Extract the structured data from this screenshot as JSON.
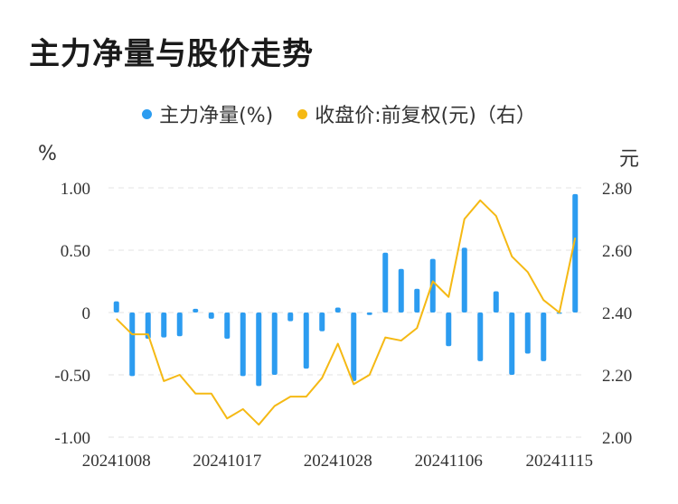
{
  "chart_data": {
    "type": "bar",
    "title": "主力净量与股价走势",
    "legend": [
      {
        "label": "主力净量(%)",
        "color": "#2c9cf0"
      },
      {
        "label": "收盘价:前复权(元)（右）",
        "color": "#f5b914"
      }
    ],
    "left_unit": "%",
    "right_unit": "元",
    "left_ylim": [
      -1.0,
      1.0
    ],
    "right_ylim": [
      2.0,
      2.8
    ],
    "left_ticks": [
      "1.00",
      "0.50",
      "0",
      "-0.50",
      "-1.00"
    ],
    "right_ticks": [
      "2.80",
      "2.60",
      "2.40",
      "2.20",
      "2.00"
    ],
    "x_tick_labels": [
      "20241008",
      "20241017",
      "20241028",
      "20241106",
      "20241115"
    ],
    "x_tick_indices": [
      0,
      7,
      14,
      21,
      28
    ],
    "series": [
      {
        "name": "主力净量(%)",
        "type": "bar",
        "values": [
          0.09,
          -0.51,
          -0.21,
          -0.2,
          -0.19,
          0.03,
          -0.05,
          -0.21,
          -0.51,
          -0.59,
          -0.5,
          -0.07,
          -0.45,
          -0.15,
          0.04,
          -0.55,
          -0.02,
          0.48,
          0.35,
          0.19,
          0.43,
          -0.27,
          0.52,
          -0.39,
          0.17,
          -0.5,
          -0.33,
          -0.39,
          -0.01,
          0.95
        ]
      },
      {
        "name": "收盘价:前复权(元)（右）",
        "type": "line",
        "values": [
          2.38,
          2.33,
          2.33,
          2.18,
          2.2,
          2.14,
          2.14,
          2.06,
          2.09,
          2.04,
          2.1,
          2.13,
          2.13,
          2.19,
          2.3,
          2.17,
          2.2,
          2.32,
          2.31,
          2.35,
          2.5,
          2.45,
          2.7,
          2.76,
          2.71,
          2.58,
          2.53,
          2.44,
          2.4,
          2.64
        ]
      }
    ]
  }
}
